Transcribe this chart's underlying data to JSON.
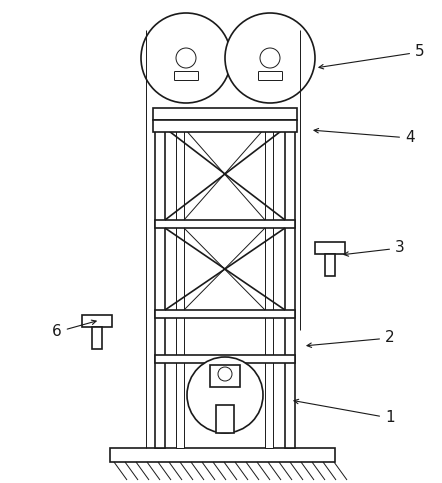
{
  "fig_width": 4.42,
  "fig_height": 4.83,
  "dpi": 100,
  "bg_color": "#ffffff",
  "line_color": "#1a1a1a",
  "lw_main": 1.2,
  "lw_thin": 0.7,
  "lw_label": 0.8,
  "label_fs": 11,
  "labels_info": [
    [
      "1",
      [
        385,
        418
      ],
      [
        290,
        400
      ]
    ],
    [
      "2",
      [
        385,
        338
      ],
      [
        303,
        346
      ]
    ],
    [
      "3",
      [
        395,
        248
      ],
      [
        340,
        255
      ]
    ],
    [
      "4",
      [
        405,
        138
      ],
      [
        310,
        130
      ]
    ],
    [
      "5",
      [
        415,
        52
      ],
      [
        315,
        68
      ]
    ],
    [
      "6",
      [
        52,
        332
      ],
      [
        100,
        320
      ]
    ]
  ]
}
